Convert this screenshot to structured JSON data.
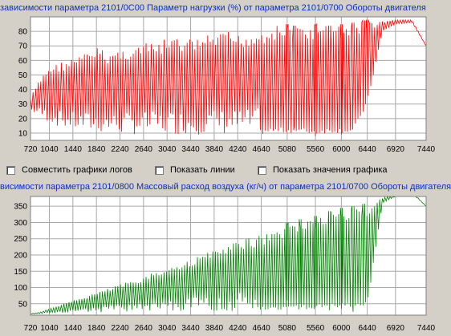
{
  "options": {
    "combine_logs": "Совместить графики логов",
    "show_lines": "Показать линии",
    "show_values": "Показать значения графика"
  },
  "chart_data": [
    {
      "type": "line",
      "title": "зависимости параметра 2101/0С00 Параметр нагрузки (%) от параметра 2101/0700 Обороты двигателя",
      "color": "#ff0000",
      "x_ticks": [
        "720",
        "1040",
        "1440",
        "1840",
        "2240",
        "2640",
        "3040",
        "3440",
        "3840",
        "4240",
        "4640",
        "5080",
        "5560",
        "6000",
        "6440",
        "6920",
        "7440"
      ],
      "y_ticks": [
        "10",
        "20",
        "30",
        "40",
        "50",
        "60",
        "70",
        "80"
      ],
      "xlim": [
        720,
        7440
      ],
      "ylim": [
        5,
        90
      ],
      "grid": true,
      "x": [
        720,
        850,
        1000,
        1150,
        1300,
        1440,
        1600,
        1840,
        2000,
        2240,
        2500,
        2640,
        2900,
        3040,
        3300,
        3440,
        3700,
        3840,
        4100,
        4240,
        4500,
        4640,
        4800,
        5080,
        5200,
        5560,
        5800,
        6000,
        6200,
        6440,
        6700,
        6920,
        7200,
        7440
      ],
      "y_upper": [
        35,
        45,
        55,
        58,
        60,
        62,
        64,
        70,
        66,
        68,
        70,
        72,
        72,
        76,
        75,
        75,
        77,
        78,
        80,
        78,
        80,
        82,
        84,
        85,
        84,
        85,
        84,
        85,
        86,
        88,
        87,
        88,
        88,
        70
      ],
      "y_lower": [
        25,
        22,
        18,
        15,
        13,
        12,
        11,
        10,
        10,
        9,
        9,
        9,
        9,
        9,
        9,
        9,
        9,
        9,
        9,
        9,
        9,
        9,
        10,
        10,
        10,
        9,
        10,
        10,
        10,
        30,
        80,
        85,
        86,
        70
      ],
      "dips": [
        [
          5080,
          40
        ],
        [
          5200,
          15
        ],
        [
          5560,
          8
        ],
        [
          5800,
          12
        ],
        [
          6000,
          9
        ],
        [
          6200,
          30
        ],
        [
          6380,
          65
        ],
        [
          6440,
          80
        ]
      ]
    },
    {
      "type": "line",
      "title": "висимости параметра 2101/0800 Массовый расход воздуха (кг/ч) от параметра 2101/0700 Обороты двигателя",
      "color": "#008000",
      "x_ticks": [
        "720",
        "1040",
        "1440",
        "1840",
        "2240",
        "2640",
        "3040",
        "3440",
        "3840",
        "4240",
        "4640",
        "5080",
        "5560",
        "6000",
        "6440",
        "6920",
        "7440"
      ],
      "y_ticks": [
        "50",
        "100",
        "150",
        "200",
        "250",
        "300",
        "350"
      ],
      "xlim": [
        720,
        7440
      ],
      "ylim": [
        15,
        380
      ],
      "grid": true,
      "x": [
        720,
        900,
        1040,
        1200,
        1440,
        1600,
        1840,
        2000,
        2240,
        2500,
        2640,
        2900,
        3040,
        3300,
        3440,
        3700,
        3840,
        4100,
        4240,
        4500,
        4640,
        4900,
        5080,
        5300,
        5560,
        5800,
        6000,
        6200,
        6440,
        6700,
        6920,
        7200,
        7440
      ],
      "y_upper": [
        20,
        25,
        35,
        45,
        60,
        70,
        85,
        95,
        110,
        125,
        135,
        150,
        165,
        175,
        190,
        205,
        215,
        230,
        245,
        255,
        265,
        280,
        300,
        310,
        320,
        335,
        345,
        350,
        360,
        375,
        390,
        395,
        350
      ],
      "y_lower": [
        18,
        20,
        22,
        22,
        22,
        23,
        23,
        24,
        24,
        25,
        25,
        25,
        26,
        26,
        27,
        27,
        28,
        28,
        29,
        30,
        30,
        31,
        32,
        33,
        34,
        35,
        36,
        36,
        40,
        360,
        380,
        390,
        350
      ],
      "dips": [
        [
          5080,
          60
        ],
        [
          5300,
          50
        ],
        [
          5560,
          40
        ],
        [
          5800,
          30
        ],
        [
          6000,
          35
        ],
        [
          6200,
          25
        ],
        [
          6380,
          300
        ]
      ]
    }
  ]
}
